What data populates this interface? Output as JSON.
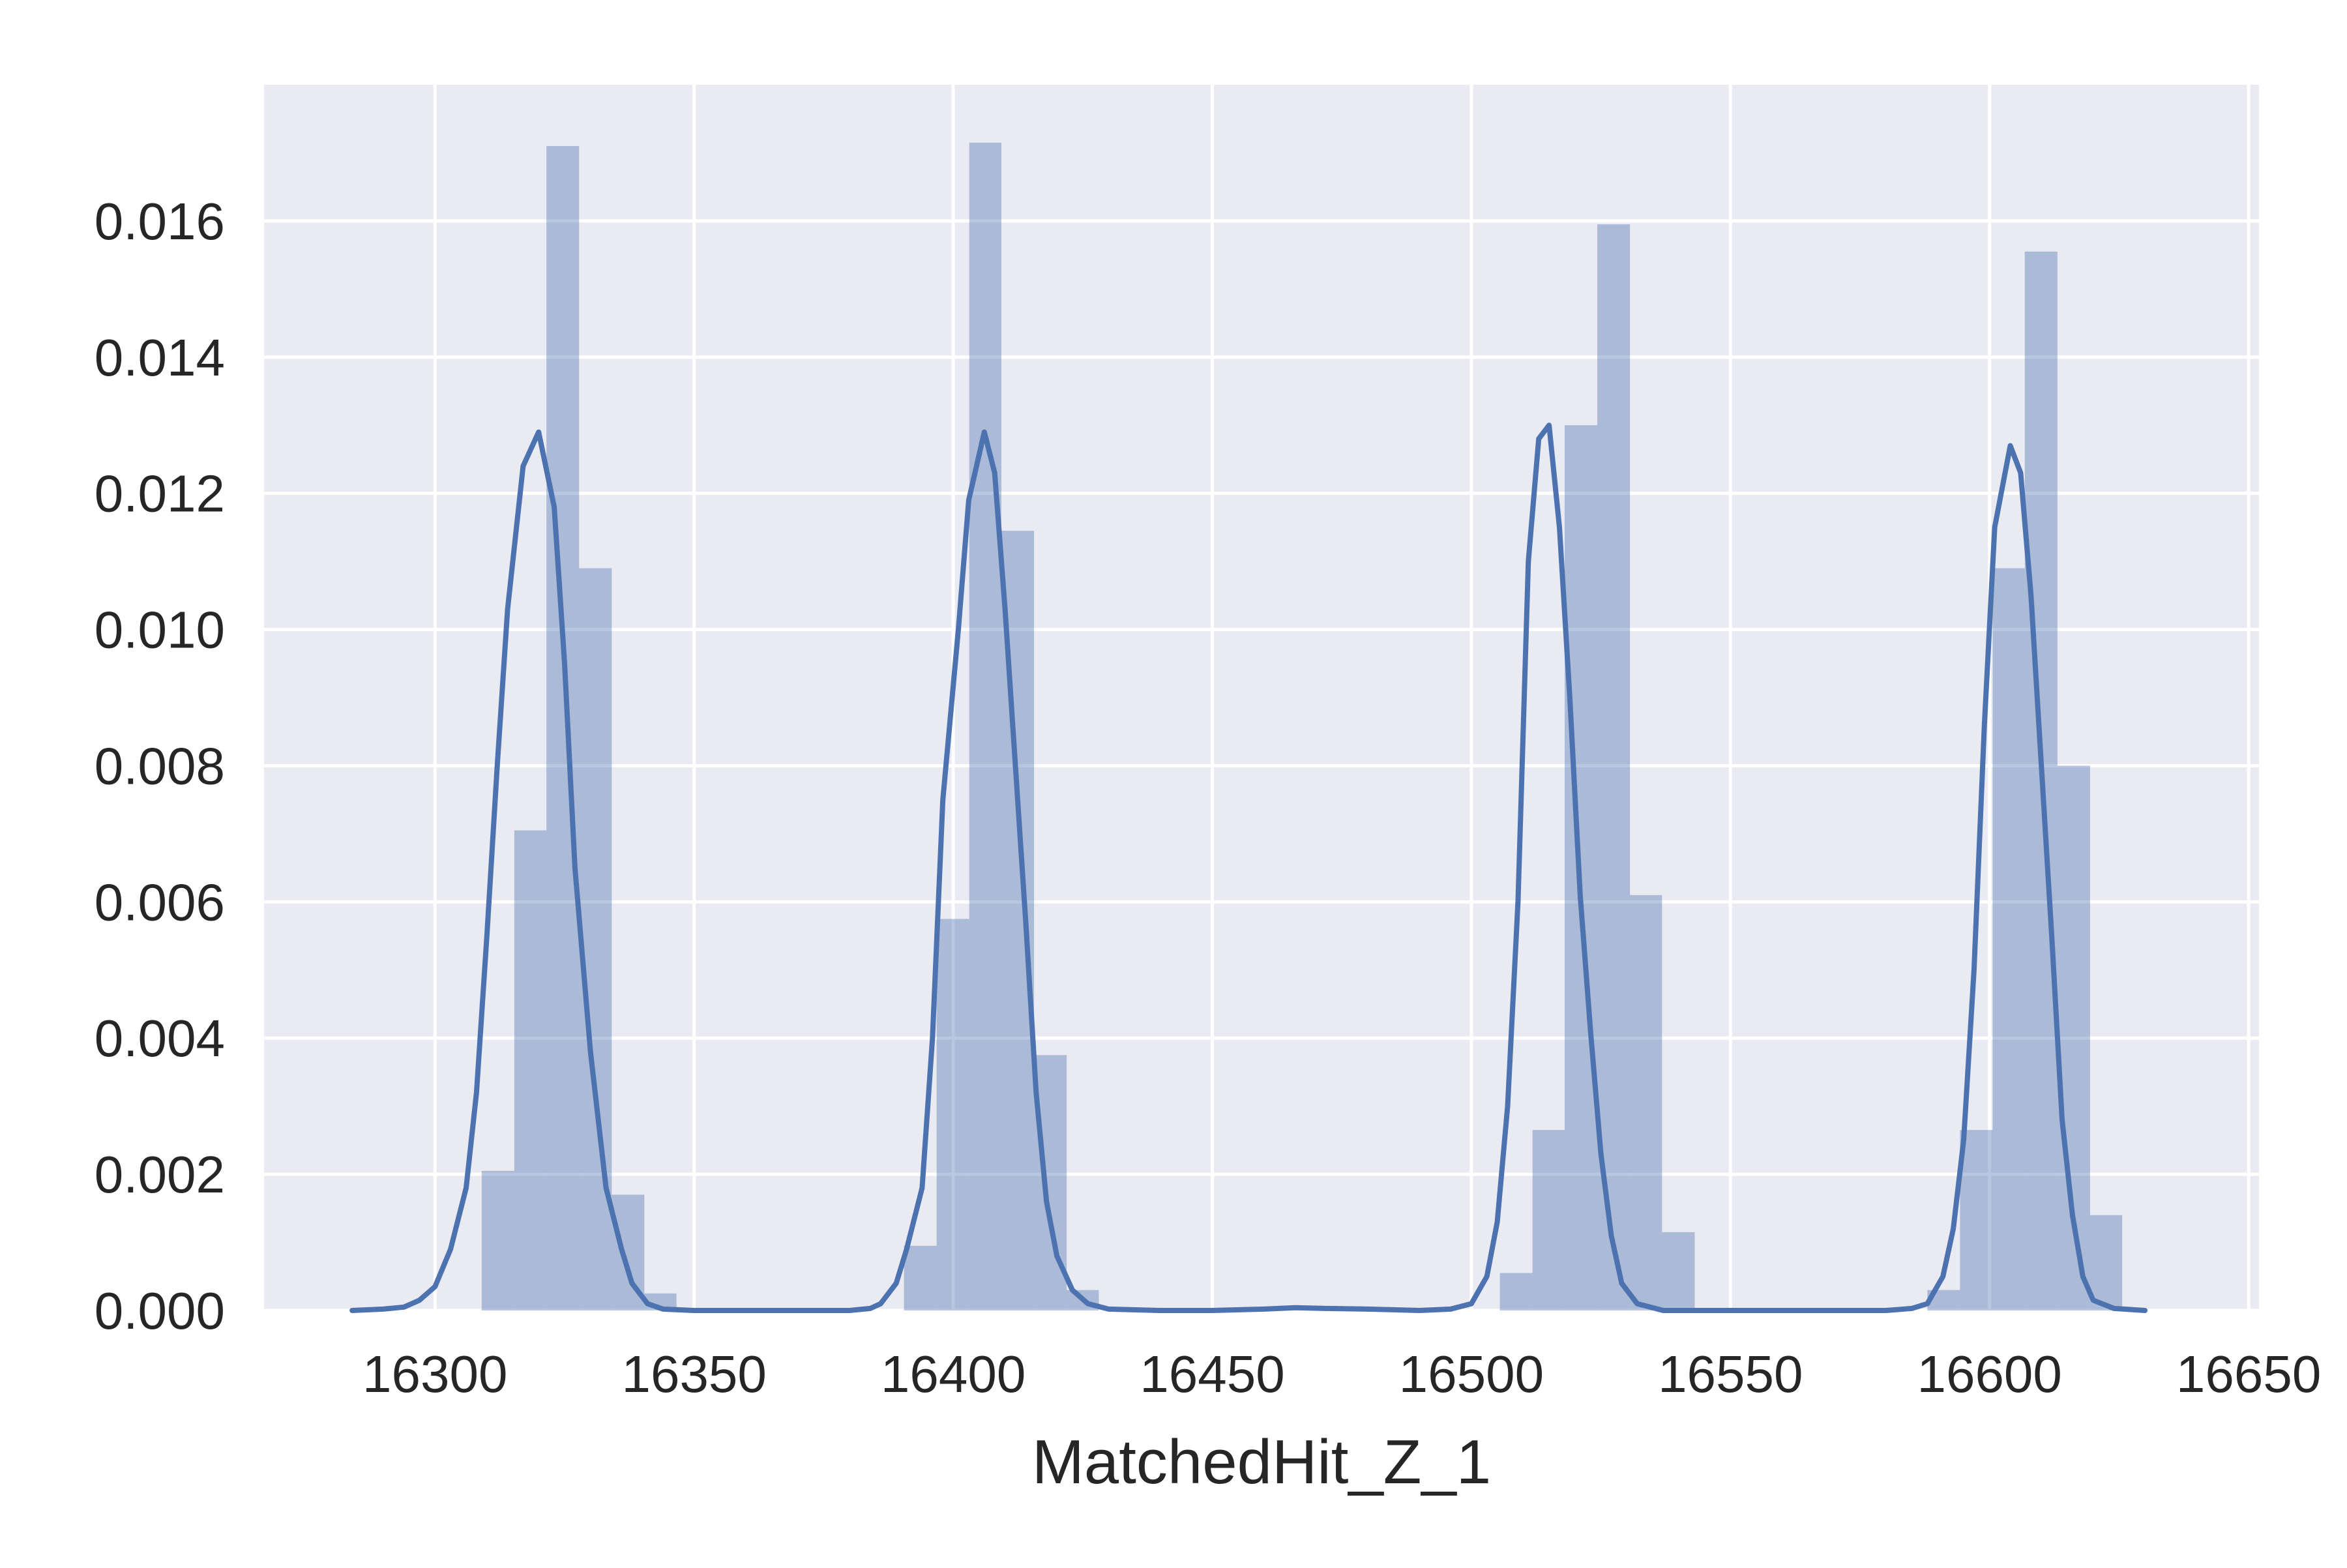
{
  "chart_data": {
    "type": "bar",
    "subtype": "histogram-with-kde",
    "title": "",
    "xlabel": "MatchedHit_Z_1",
    "ylabel": "",
    "xlim": [
      16267,
      16652
    ],
    "ylim": [
      0,
      0.018
    ],
    "x_ticks": [
      16300,
      16350,
      16400,
      16450,
      16500,
      16550,
      16600,
      16650
    ],
    "x_tick_labels": [
      "16300",
      "16350",
      "16400",
      "16450",
      "16500",
      "16550",
      "16600",
      "16650"
    ],
    "y_ticks": [
      0,
      0.002,
      0.004,
      0.006,
      0.008,
      0.01,
      0.012,
      0.014,
      0.016
    ],
    "y_tick_labels": [
      "0.000",
      "0.002",
      "0.004",
      "0.006",
      "0.008",
      "0.010",
      "0.012",
      "0.014",
      "0.016"
    ],
    "grid": true,
    "colors": {
      "background": "#EAEAF2",
      "grid": "#FFFFFF",
      "bar": "#4C72B0",
      "bar_opacity": 0.4,
      "kde": "#4C72B0"
    },
    "bins": [
      {
        "x0": 16309.0,
        "x1": 16315.3,
        "value": 0.00205
      },
      {
        "x0": 16315.3,
        "x1": 16321.5,
        "value": 0.00705
      },
      {
        "x0": 16321.5,
        "x1": 16327.8,
        "value": 0.0171
      },
      {
        "x0": 16327.8,
        "x1": 16334.1,
        "value": 0.0109
      },
      {
        "x0": 16334.1,
        "x1": 16340.4,
        "value": 0.0017
      },
      {
        "x0": 16340.4,
        "x1": 16346.6,
        "value": 0.00025
      },
      {
        "x0": 16346.6,
        "x1": 16352.9,
        "value": 0.0
      },
      {
        "x0": 16390.5,
        "x1": 16396.8,
        "value": 0.00095
      },
      {
        "x0": 16396.8,
        "x1": 16403.1,
        "value": 0.00575
      },
      {
        "x0": 16403.1,
        "x1": 16409.3,
        "value": 0.01715
      },
      {
        "x0": 16409.3,
        "x1": 16415.6,
        "value": 0.01145
      },
      {
        "x0": 16415.6,
        "x1": 16421.9,
        "value": 0.00375
      },
      {
        "x0": 16421.9,
        "x1": 16428.1,
        "value": 0.0003
      },
      {
        "x0": 16505.5,
        "x1": 16511.8,
        "value": 0.00055
      },
      {
        "x0": 16511.8,
        "x1": 16518.0,
        "value": 0.00265
      },
      {
        "x0": 16518.0,
        "x1": 16524.3,
        "value": 0.013
      },
      {
        "x0": 16524.3,
        "x1": 16530.6,
        "value": 0.01595
      },
      {
        "x0": 16530.6,
        "x1": 16536.8,
        "value": 0.0061
      },
      {
        "x0": 16536.8,
        "x1": 16543.1,
        "value": 0.00115
      },
      {
        "x0": 16588.0,
        "x1": 16594.3,
        "value": 0.0003
      },
      {
        "x0": 16594.3,
        "x1": 16600.6,
        "value": 0.00265
      },
      {
        "x0": 16600.6,
        "x1": 16606.8,
        "value": 0.0109
      },
      {
        "x0": 16606.8,
        "x1": 16613.1,
        "value": 0.01555
      },
      {
        "x0": 16613.1,
        "x1": 16619.4,
        "value": 0.008
      },
      {
        "x0": 16619.4,
        "x1": 16625.6,
        "value": 0.0014
      }
    ],
    "kde_points": [
      [
        16284,
        0.0
      ],
      [
        16290,
        2e-05
      ],
      [
        16294,
        5e-05
      ],
      [
        16297,
        0.00015
      ],
      [
        16300,
        0.00035
      ],
      [
        16303,
        0.0009
      ],
      [
        16306,
        0.0018
      ],
      [
        16308,
        0.0032
      ],
      [
        16310,
        0.0055
      ],
      [
        16312,
        0.008
      ],
      [
        16314,
        0.0103
      ],
      [
        16317,
        0.0124
      ],
      [
        16320,
        0.0129
      ],
      [
        16323,
        0.0118
      ],
      [
        16325,
        0.0095
      ],
      [
        16327,
        0.0065
      ],
      [
        16330,
        0.0038
      ],
      [
        16333,
        0.0018
      ],
      [
        16336,
        0.0009
      ],
      [
        16338,
        0.0004
      ],
      [
        16341,
        0.0001
      ],
      [
        16344,
        2e-05
      ],
      [
        16350,
        0.0
      ],
      [
        16370,
        0.0
      ],
      [
        16380,
        0.0
      ],
      [
        16384,
        3e-05
      ],
      [
        16386,
        0.0001
      ],
      [
        16389,
        0.0004
      ],
      [
        16391,
        0.0009
      ],
      [
        16394,
        0.0018
      ],
      [
        16396,
        0.004
      ],
      [
        16398,
        0.0075
      ],
      [
        16401,
        0.01
      ],
      [
        16403,
        0.0119
      ],
      [
        16406,
        0.0129
      ],
      [
        16408,
        0.0123
      ],
      [
        16410,
        0.0103
      ],
      [
        16412,
        0.008
      ],
      [
        16414,
        0.0057
      ],
      [
        16416,
        0.0032
      ],
      [
        16418,
        0.0016
      ],
      [
        16420,
        0.0008
      ],
      [
        16423,
        0.0003
      ],
      [
        16426,
        0.0001
      ],
      [
        16430,
        2e-05
      ],
      [
        16440,
        0.0
      ],
      [
        16450,
        0.0
      ],
      [
        16460,
        2e-05
      ],
      [
        16466,
        4e-05
      ],
      [
        16472,
        3e-05
      ],
      [
        16480,
        2e-05
      ],
      [
        16490,
        0.0
      ],
      [
        16496,
        2e-05
      ],
      [
        16500,
        0.0001
      ],
      [
        16503,
        0.0005
      ],
      [
        16505,
        0.0013
      ],
      [
        16507,
        0.003
      ],
      [
        16509,
        0.006
      ],
      [
        16511,
        0.011
      ],
      [
        16513,
        0.0128
      ],
      [
        16515,
        0.013
      ],
      [
        16517,
        0.0115
      ],
      [
        16519,
        0.009
      ],
      [
        16521,
        0.0061
      ],
      [
        16523,
        0.0041
      ],
      [
        16525,
        0.0023
      ],
      [
        16527,
        0.0011
      ],
      [
        16529,
        0.0004
      ],
      [
        16532,
        0.0001
      ],
      [
        16537,
        0.0
      ],
      [
        16560,
        0.0
      ],
      [
        16580,
        0.0
      ],
      [
        16585,
        3e-05
      ],
      [
        16588,
        0.0001
      ],
      [
        16591,
        0.0005
      ],
      [
        16593,
        0.0012
      ],
      [
        16595,
        0.0025
      ],
      [
        16597,
        0.005
      ],
      [
        16599,
        0.0086
      ],
      [
        16601,
        0.0115
      ],
      [
        16604,
        0.0127
      ],
      [
        16606,
        0.0123
      ],
      [
        16608,
        0.0105
      ],
      [
        16610,
        0.008
      ],
      [
        16612,
        0.0055
      ],
      [
        16614,
        0.0028
      ],
      [
        16616,
        0.0014
      ],
      [
        16618,
        0.0005
      ],
      [
        16620,
        0.00015
      ],
      [
        16624,
        3e-05
      ],
      [
        16630,
        0.0
      ]
    ]
  }
}
